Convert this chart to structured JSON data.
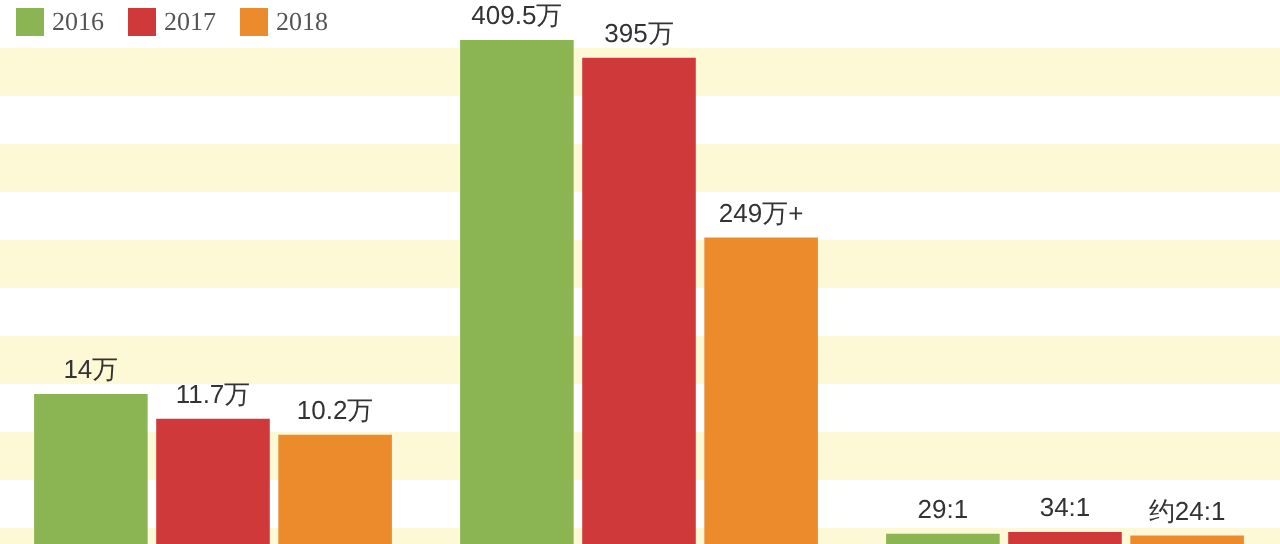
{
  "chart_data": [
    {
      "type": "bar",
      "categories": [
        null
      ],
      "tick_labels": false,
      "legend": "top left",
      "series": [
        {
          "name": "2016",
          "color": "#8ab552",
          "values": [
            14
          ],
          "value_labels": [
            "14万"
          ]
        },
        {
          "name": "2017",
          "color": "#d0393a",
          "values": [
            11.7
          ],
          "value_labels": [
            "11.7万"
          ]
        },
        {
          "name": "2018",
          "color": "#ec8b2c",
          "values": [
            10.2
          ],
          "value_labels": [
            "10.2万"
          ]
        }
      ]
    },
    {
      "type": "bar",
      "categories": [
        null
      ],
      "tick_labels": false,
      "series": [
        {
          "color": "#8ab552",
          "values": [
            409.5
          ],
          "value_labels": [
            "409.5万"
          ]
        },
        {
          "color": "#d0393a",
          "values": [
            395
          ],
          "value_labels": [
            "395万"
          ]
        },
        {
          "color": "#ec8b2c",
          "values": [
            249
          ],
          "value_labels": [
            "249万+"
          ]
        }
      ]
    },
    {
      "type": "bar",
      "categories": [
        null
      ],
      "tick_labels": false,
      "series": [
        {
          "color": "#8ab552",
          "values": [
            29
          ],
          "value_labels": [
            "29:1"
          ]
        },
        {
          "color": "#d0393a",
          "values": [
            34
          ],
          "value_labels": [
            "34:1"
          ]
        },
        {
          "color": "#ec8b2c",
          "values": [
            24
          ],
          "value_labels": [
            "约24:1"
          ]
        }
      ]
    }
  ]
}
